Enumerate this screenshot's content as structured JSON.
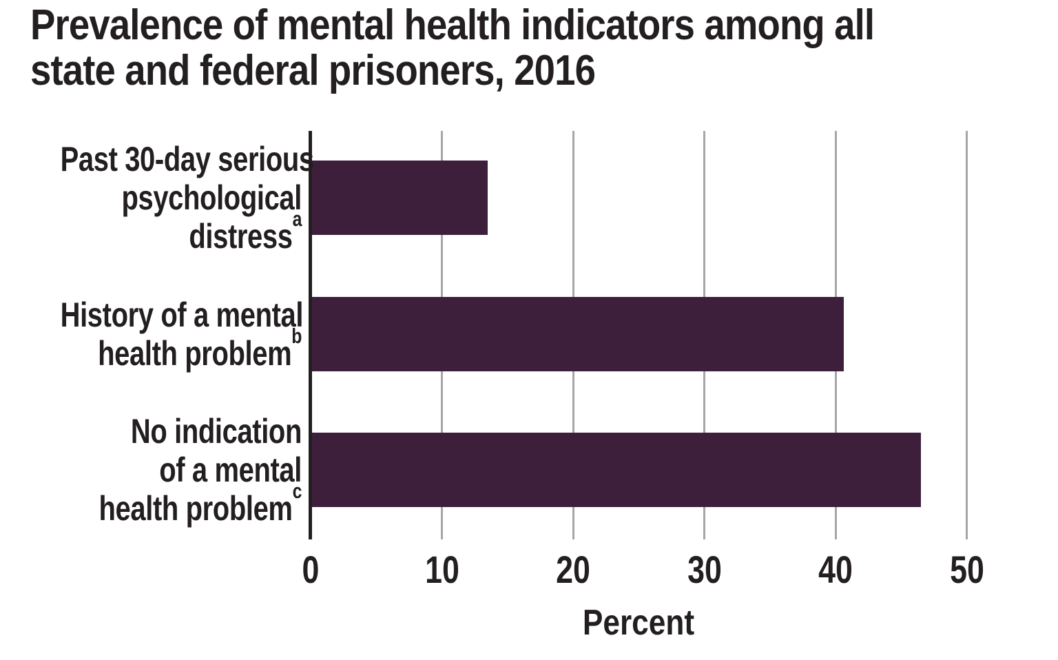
{
  "chart_data": {
    "type": "bar",
    "orientation": "horizontal",
    "title": "Prevalence of mental health indicators among all state and federal prisoners, 2016",
    "title_lines": [
      "Prevalence of mental health indicators among all",
      "state and federal prisoners, 2016"
    ],
    "categories": [
      {
        "label": "Past 30-day serious psychological distress",
        "lines": [
          "Past 30-day serious",
          "psychological",
          "distress"
        ],
        "footnote_marker": "a"
      },
      {
        "label": "History of a mental health problem",
        "lines": [
          "History of a mental",
          "health problem"
        ],
        "footnote_marker": "b"
      },
      {
        "label": "No indication of a mental health problem",
        "lines": [
          "No indication",
          "of a mental",
          "health problem"
        ],
        "footnote_marker": "c"
      }
    ],
    "values": [
      13.4,
      40.5,
      46.4
    ],
    "unit": "percent",
    "xlabel": "Percent",
    "xlim": [
      0,
      50
    ],
    "xticks": [
      0,
      10,
      20,
      30,
      40,
      50
    ],
    "grid": true,
    "gridline_orientation": "vertical",
    "legend": false,
    "colors": {
      "bar": "#3d1f3c",
      "gridline": "#a6a6a6",
      "axis": "#231f20",
      "text": "#231f20",
      "background": "#ffffff"
    }
  }
}
